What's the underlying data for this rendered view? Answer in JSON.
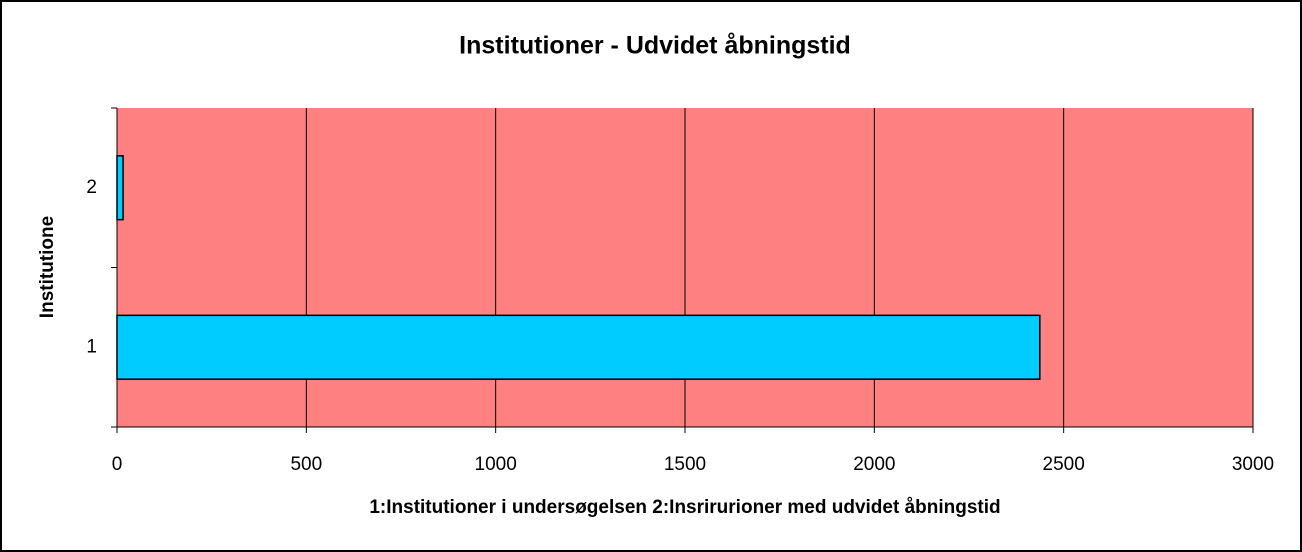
{
  "chart_data": {
    "type": "bar",
    "orientation": "horizontal",
    "title": "Institutioner - Udvidet åbningstid",
    "x_label": "1:Institutioner i undersøgelsen 2:Insrirurioner med udvidet åbningstid",
    "y_label": "Institutione",
    "categories": [
      "1",
      "2"
    ],
    "values": [
      2437,
      16
    ],
    "color": "#00ccff",
    "plot_background": "#ff8080",
    "xlim": [
      0,
      3000
    ],
    "xticks": [
      0,
      500,
      1000,
      1500,
      2000,
      2500,
      3000
    ],
    "grid": true
  }
}
